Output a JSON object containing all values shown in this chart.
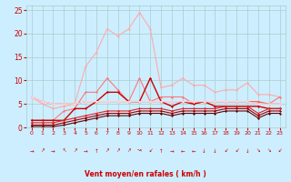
{
  "x": [
    0,
    1,
    2,
    3,
    4,
    5,
    6,
    7,
    8,
    9,
    10,
    11,
    12,
    13,
    14,
    15,
    16,
    17,
    18,
    19,
    20,
    21,
    22,
    23
  ],
  "series": [
    {
      "color": "#ffaaaa",
      "lw": 0.8,
      "marker": "D",
      "ms": 1.5,
      "values": [
        6.5,
        5.0,
        4.0,
        4.5,
        5.0,
        13.0,
        16.0,
        21.0,
        19.5,
        21.0,
        24.5,
        21.0,
        8.5,
        9.0,
        10.5,
        9.0,
        9.0,
        7.5,
        8.0,
        8.0,
        9.5,
        7.0,
        7.0,
        6.5
      ]
    },
    {
      "color": "#ff7777",
      "lw": 0.8,
      "marker": "D",
      "ms": 1.5,
      "values": [
        1.5,
        1.5,
        1.5,
        3.5,
        4.0,
        7.5,
        7.5,
        10.5,
        8.0,
        5.5,
        10.5,
        5.5,
        6.5,
        6.5,
        6.5,
        5.0,
        5.5,
        5.5,
        5.5,
        5.5,
        5.5,
        5.0,
        5.0,
        6.5
      ]
    },
    {
      "color": "#cc0000",
      "lw": 1.0,
      "marker": "D",
      "ms": 1.5,
      "values": [
        1.5,
        1.5,
        1.5,
        1.5,
        4.0,
        4.0,
        5.5,
        7.5,
        7.5,
        5.5,
        5.5,
        10.5,
        5.5,
        4.5,
        5.5,
        5.0,
        5.5,
        4.5,
        4.5,
        4.5,
        4.5,
        4.5,
        4.0,
        4.0
      ]
    },
    {
      "color": "#ff5555",
      "lw": 0.8,
      "marker": "D",
      "ms": 1.5,
      "values": [
        6.5,
        5.5,
        5.0,
        5.0,
        5.0,
        5.5,
        5.5,
        5.5,
        5.5,
        5.5,
        5.5,
        5.5,
        5.5,
        5.5,
        5.5,
        5.5,
        5.5,
        5.5,
        5.5,
        5.5,
        5.5,
        5.5,
        5.0,
        5.0
      ]
    },
    {
      "color": "#ffdddd",
      "lw": 0.8,
      "marker": "D",
      "ms": 1.5,
      "values": [
        6.5,
        5.5,
        5.0,
        5.0,
        5.0,
        5.5,
        5.5,
        5.5,
        5.5,
        5.5,
        5.5,
        5.5,
        5.5,
        5.5,
        5.5,
        5.5,
        5.5,
        5.5,
        5.5,
        5.5,
        5.5,
        5.0,
        5.0,
        5.0
      ]
    },
    {
      "color": "#dd2222",
      "lw": 0.8,
      "marker": "D",
      "ms": 1.5,
      "values": [
        1.0,
        1.0,
        1.0,
        1.5,
        2.0,
        2.5,
        3.0,
        3.5,
        3.5,
        3.5,
        4.0,
        4.0,
        4.0,
        3.5,
        4.0,
        4.0,
        4.0,
        4.0,
        4.5,
        4.5,
        4.5,
        3.0,
        4.0,
        4.0
      ]
    },
    {
      "color": "#990000",
      "lw": 0.8,
      "marker": "D",
      "ms": 1.5,
      "values": [
        0.5,
        0.5,
        0.5,
        1.0,
        1.5,
        2.0,
        2.5,
        3.0,
        3.0,
        3.0,
        3.5,
        3.5,
        3.5,
        3.0,
        3.5,
        3.5,
        3.5,
        3.5,
        4.0,
        4.0,
        4.0,
        2.5,
        3.5,
        3.5
      ]
    },
    {
      "color": "#660000",
      "lw": 0.8,
      "marker": "D",
      "ms": 1.5,
      "values": [
        0.2,
        0.2,
        0.2,
        0.5,
        1.0,
        1.5,
        2.0,
        2.5,
        2.5,
        2.5,
        3.0,
        3.0,
        3.0,
        2.5,
        3.0,
        3.0,
        3.0,
        3.0,
        3.5,
        3.5,
        3.5,
        2.0,
        3.0,
        3.0
      ]
    }
  ],
  "arrow_symbols": [
    "→",
    "↗",
    "→",
    "↖",
    "↗",
    "→",
    "↑",
    "↗",
    "↗",
    "↗",
    "↝",
    "↙",
    "↑",
    "→",
    "←",
    "←",
    "↓",
    "↓",
    "↙",
    "↙",
    "↓",
    "↘",
    "↘",
    "↙"
  ],
  "xlabel": "Vent moyen/en rafales ( km/h )",
  "bg_color": "#cceeff",
  "grid_color": "#aacccc",
  "axis_label_color": "#cc0000",
  "tick_color": "#cc0000",
  "xlim": [
    -0.5,
    23.5
  ],
  "ylim": [
    0,
    26
  ],
  "yticks": [
    0,
    5,
    10,
    15,
    20,
    25
  ],
  "xticks": [
    0,
    1,
    2,
    3,
    4,
    5,
    6,
    7,
    8,
    9,
    10,
    11,
    12,
    13,
    14,
    15,
    16,
    17,
    18,
    19,
    20,
    21,
    22,
    23
  ]
}
